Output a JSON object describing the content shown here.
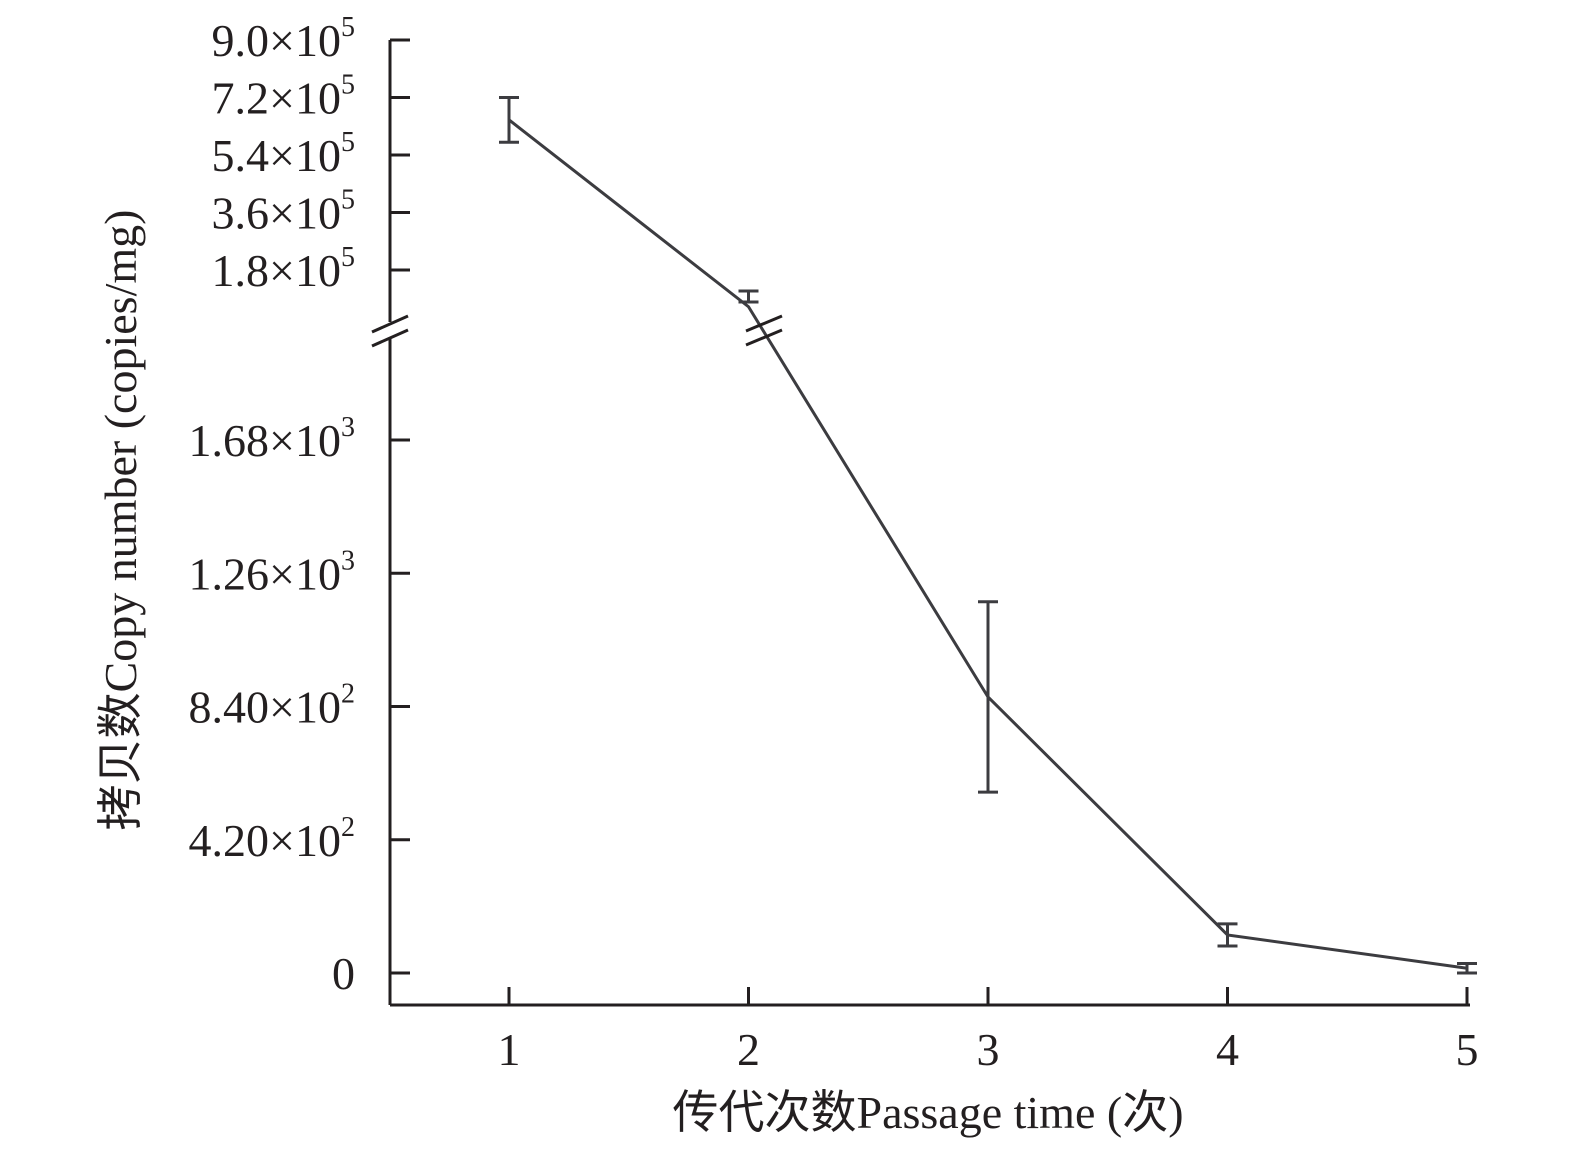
{
  "chart_data": {
    "type": "line",
    "title": "",
    "xlabel": "传代次数Passage time (次)",
    "ylabel": "拷贝数Copy number (copies/mg)",
    "x": [
      1,
      2,
      3,
      4,
      5
    ],
    "xticks": [
      "1",
      "2",
      "3",
      "4",
      "5"
    ],
    "xlim": [
      0.5,
      5.5
    ],
    "series": [
      {
        "values": [
          650000,
          2100,
          870,
          120,
          15
        ],
        "error": [
          70000,
          18000,
          300,
          35,
          15
        ]
      }
    ],
    "y_axis_broken": true,
    "y_segments": [
      {
        "range": [
          0,
          2000
        ],
        "ticks": [
          {
            "value": 0,
            "mantissa": "0",
            "exp": ""
          },
          {
            "value": 420,
            "mantissa": "4.20×10",
            "exp": "2"
          },
          {
            "value": 840,
            "mantissa": "8.40×10",
            "exp": "2"
          },
          {
            "value": 1260,
            "mantissa": "1.26×10",
            "exp": "3"
          },
          {
            "value": 1680,
            "mantissa": "1.68×10",
            "exp": "3"
          }
        ]
      },
      {
        "range": [
          80000,
          900000
        ],
        "ticks": [
          {
            "value": 180000,
            "mantissa": "1.8×10",
            "exp": "5"
          },
          {
            "value": 360000,
            "mantissa": "3.6×10",
            "exp": "5"
          },
          {
            "value": 540000,
            "mantissa": "5.4×10",
            "exp": "5"
          },
          {
            "value": 720000,
            "mantissa": "7.2×10",
            "exp": "5"
          },
          {
            "value": 900000,
            "mantissa": "9.0×10",
            "exp": "5"
          }
        ]
      }
    ],
    "grid": false,
    "legend": "none",
    "colors": {
      "line": "#3c3c40",
      "axis": "#231f20"
    }
  }
}
